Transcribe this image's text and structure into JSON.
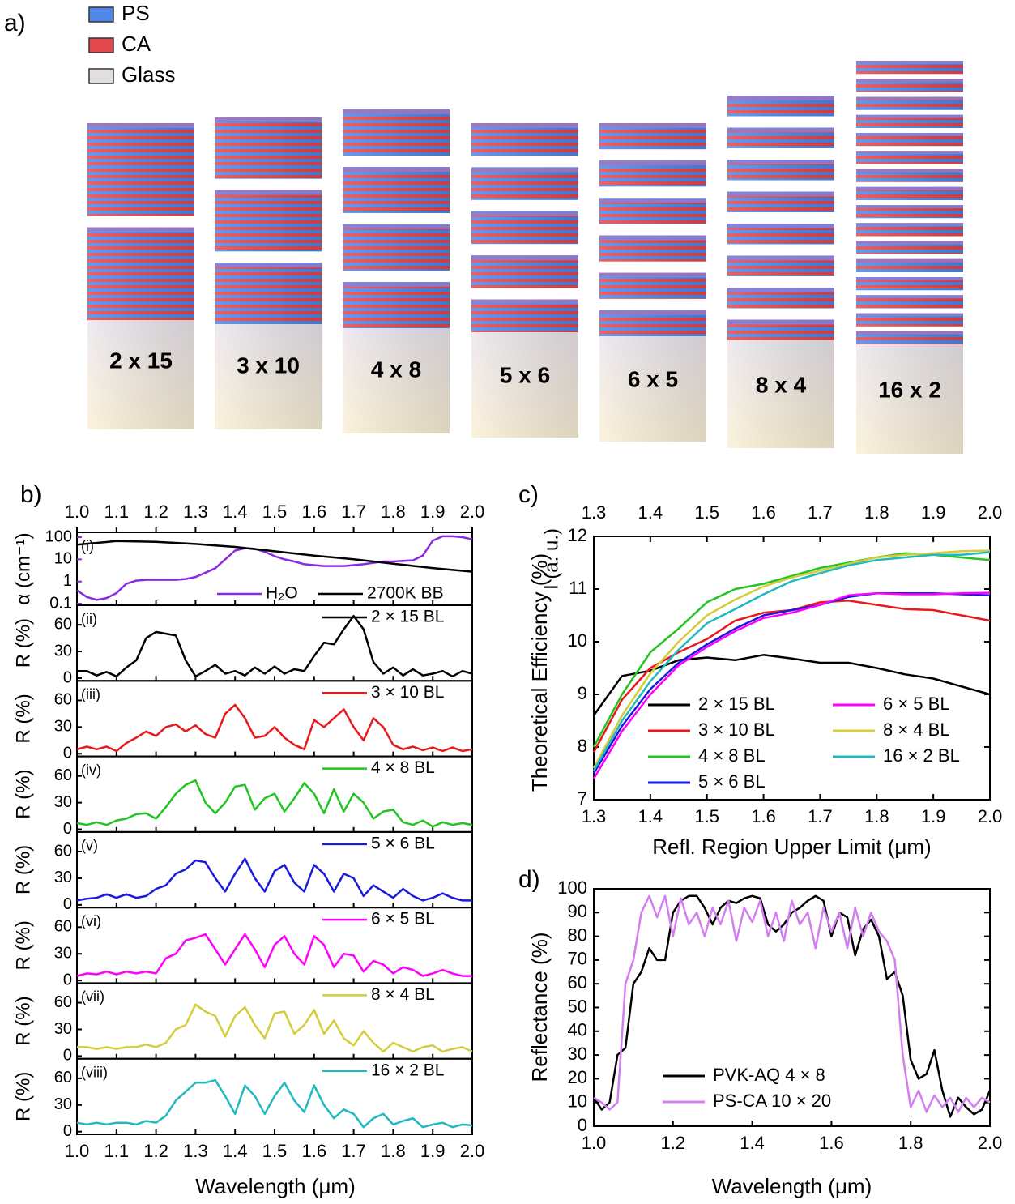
{
  "panel_a": {
    "label": "a)",
    "legend": [
      {
        "name": "PS",
        "color": "#4f86e8"
      },
      {
        "name": "CA",
        "color": "#e2474d"
      },
      {
        "name": "Glass",
        "color": "#e3dede"
      }
    ],
    "stacks": [
      "2 x 15",
      "3 x 10",
      "4 x 8",
      "5 x 6",
      "6 x 5",
      "8 x 4",
      "16 x 2"
    ]
  },
  "chart_data": [
    {
      "type": "stacked-lines",
      "panel_label": "b)",
      "xlabel": "Wavelength (μm)",
      "xlim": [
        1,
        2
      ],
      "xticks": [
        {
          "value": 1,
          "label": "1.0"
        },
        1.1,
        1.2,
        1.3,
        1.4,
        1.5,
        1.6,
        1.7,
        1.8,
        1.9,
        {
          "value": 2,
          "label": "2.0"
        }
      ],
      "x": [
        1,
        1.025,
        1.05,
        1.075,
        1.1,
        1.125,
        1.15,
        1.175,
        1.2,
        1.225,
        1.25,
        1.275,
        1.3,
        1.325,
        1.35,
        1.375,
        1.4,
        1.425,
        1.45,
        1.475,
        1.5,
        1.525,
        1.55,
        1.575,
        1.6,
        1.625,
        1.65,
        1.675,
        1.7,
        1.725,
        1.75,
        1.775,
        1.8,
        1.825,
        1.85,
        1.875,
        1.9,
        1.925,
        1.95,
        1.975,
        2
      ],
      "subplots": [
        {
          "tag": "(i)",
          "ylabel": "α (cm⁻¹)",
          "axis_color": "#8a2be2",
          "log_y": true,
          "ylim": [
            0.085,
            166
          ],
          "yticks": [
            0.1,
            1,
            10,
            100
          ],
          "y2label": "I (a. u.)",
          "y2lim": [
            0,
            1
          ],
          "series": [
            {
              "name": "H₂O",
              "color": "#8a2be2",
              "values": [
                0.4,
                0.2,
                0.15,
                0.18,
                0.3,
                0.8,
                1.1,
                1.2,
                1.2,
                1.2,
                1.2,
                1.3,
                1.6,
                2.5,
                4,
                10,
                25,
                32,
                30,
                22,
                14,
                10,
                8,
                6,
                5.5,
                5,
                5,
                5,
                5.5,
                6,
                7,
                8,
                8,
                8.5,
                9,
                15,
                70,
                110,
                110,
                100,
                80
              ]
            },
            {
              "name": "2700K BB",
              "color": "#000000",
              "axis": "y2",
              "x": [
                1,
                1.1,
                1.2,
                1.3,
                1.4,
                1.5,
                1.6,
                1.7,
                1.8,
                1.9,
                2
              ],
              "values": [
                0.83,
                0.88,
                0.87,
                0.84,
                0.8,
                0.74,
                0.68,
                0.63,
                0.57,
                0.51,
                0.46
              ]
            }
          ]
        },
        {
          "tag": "(ii)",
          "ylabel": "R (%)",
          "ylim": [
            -3,
            82
          ],
          "yticks": [
            0,
            30,
            60
          ],
          "series": [
            {
              "name": "2 × 15 BL",
              "color": "#000000",
              "values": [
                8,
                8,
                3,
                7,
                2,
                12,
                20,
                45,
                52,
                50,
                48,
                20,
                2,
                8,
                15,
                5,
                8,
                3,
                12,
                5,
                13,
                5,
                10,
                8,
                25,
                40,
                38,
                55,
                70,
                55,
                18,
                5,
                12,
                3,
                10,
                3,
                5,
                8,
                2,
                8,
                5
              ]
            }
          ]
        },
        {
          "tag": "(iii)",
          "ylabel": "R (%)",
          "ylim": [
            -3,
            82
          ],
          "yticks": [
            0,
            30,
            60
          ],
          "series": [
            {
              "name": "3 × 10 BL",
              "color": "#e8191b",
              "values": [
                5,
                8,
                5,
                8,
                3,
                12,
                18,
                25,
                20,
                30,
                33,
                25,
                32,
                22,
                18,
                45,
                55,
                40,
                18,
                20,
                30,
                18,
                10,
                5,
                38,
                30,
                40,
                50,
                30,
                15,
                40,
                30,
                10,
                5,
                8,
                4,
                7,
                3,
                7,
                3,
                5
              ]
            }
          ]
        },
        {
          "tag": "(iv)",
          "ylabel": "R (%)",
          "ylim": [
            -3,
            82
          ],
          "yticks": [
            0,
            30,
            60
          ],
          "series": [
            {
              "name": "4 × 8 BL",
              "color": "#22c422",
              "values": [
                7,
                5,
                8,
                5,
                10,
                12,
                17,
                18,
                12,
                25,
                40,
                50,
                55,
                30,
                18,
                30,
                48,
                50,
                22,
                35,
                40,
                20,
                35,
                52,
                40,
                18,
                45,
                20,
                40,
                30,
                12,
                20,
                22,
                8,
                5,
                10,
                3,
                8,
                5,
                7,
                5
              ]
            }
          ]
        },
        {
          "tag": "(v)",
          "ylabel": "R (%)",
          "ylim": [
            -3,
            82
          ],
          "yticks": [
            0,
            30,
            60
          ],
          "series": [
            {
              "name": "5 × 6 BL",
              "color": "#1a1adc",
              "values": [
                5,
                7,
                8,
                12,
                8,
                12,
                8,
                10,
                18,
                22,
                35,
                40,
                50,
                48,
                30,
                15,
                35,
                52,
                30,
                15,
                38,
                45,
                25,
                15,
                45,
                35,
                15,
                35,
                30,
                10,
                22,
                15,
                8,
                18,
                10,
                5,
                8,
                13,
                8,
                5,
                5
              ]
            }
          ]
        },
        {
          "tag": "(vi)",
          "ylabel": "R (%)",
          "ylim": [
            -3,
            82
          ],
          "yticks": [
            0,
            30,
            60
          ],
          "series": [
            {
              "name": "6 × 5 BL",
              "color": "#ff00ff",
              "values": [
                5,
                8,
                7,
                10,
                7,
                10,
                8,
                10,
                8,
                25,
                30,
                45,
                48,
                52,
                35,
                18,
                35,
                52,
                35,
                15,
                40,
                50,
                30,
                18,
                50,
                40,
                15,
                30,
                28,
                10,
                22,
                18,
                8,
                15,
                12,
                5,
                8,
                12,
                8,
                5,
                5
              ]
            }
          ]
        },
        {
          "tag": "(vii)",
          "ylabel": "R (%)",
          "ylim": [
            -3,
            82
          ],
          "yticks": [
            0,
            30,
            60
          ],
          "series": [
            {
              "name": "8 × 4 BL",
              "color": "#d4cc3a",
              "values": [
                10,
                10,
                8,
                10,
                8,
                10,
                10,
                13,
                10,
                15,
                30,
                35,
                58,
                50,
                45,
                22,
                45,
                55,
                35,
                20,
                48,
                50,
                25,
                35,
                52,
                25,
                40,
                20,
                12,
                28,
                15,
                5,
                15,
                10,
                5,
                10,
                12,
                5,
                8,
                10,
                5
              ]
            }
          ]
        },
        {
          "tag": "(viii)",
          "ylabel": "R (%)",
          "ylim": [
            -3,
            82
          ],
          "yticks": [
            0,
            30,
            60
          ],
          "series": [
            {
              "name": "16 × 2 BL",
              "color": "#22b8c0",
              "values": [
                10,
                8,
                10,
                8,
                10,
                10,
                8,
                12,
                10,
                18,
                35,
                45,
                55,
                55,
                58,
                40,
                20,
                52,
                40,
                20,
                40,
                55,
                35,
                22,
                52,
                30,
                15,
                25,
                20,
                5,
                15,
                20,
                8,
                12,
                15,
                5,
                8,
                10,
                5,
                8,
                7
              ]
            }
          ]
        }
      ]
    },
    {
      "type": "line",
      "panel_label": "c)",
      "xlabel": "Refl. Region Upper Limit (μm)",
      "ylabel": "Theoretical Efficiency (%)",
      "xlim": [
        1.3,
        2
      ],
      "xticks": [
        1.3,
        1.4,
        1.5,
        1.6,
        1.7,
        1.8,
        1.9,
        {
          "value": 2,
          "label": "2.0"
        }
      ],
      "ylim": [
        7,
        12
      ],
      "yticks": [
        7,
        8,
        9,
        10,
        11,
        12
      ],
      "x": [
        1.3,
        1.35,
        1.4,
        1.45,
        1.5,
        1.55,
        1.6,
        1.65,
        1.7,
        1.75,
        1.8,
        1.85,
        1.9,
        1.95,
        2
      ],
      "series": [
        {
          "name": "2 × 15 BL",
          "color": "#000000",
          "values": [
            8.6,
            9.35,
            9.45,
            9.65,
            9.7,
            9.65,
            9.75,
            9.68,
            9.6,
            9.6,
            9.5,
            9.38,
            9.3,
            9.15,
            9.0
          ]
        },
        {
          "name": "3 × 10 BL",
          "color": "#e8191b",
          "values": [
            7.9,
            8.9,
            9.5,
            9.8,
            10.05,
            10.4,
            10.55,
            10.6,
            10.75,
            10.78,
            10.7,
            10.62,
            10.6,
            10.5,
            10.4
          ]
        },
        {
          "name": "4 × 8 BL",
          "color": "#22c422",
          "values": [
            8.0,
            9.0,
            9.8,
            10.25,
            10.75,
            11.0,
            11.1,
            11.25,
            11.4,
            11.5,
            11.6,
            11.68,
            11.65,
            11.6,
            11.55
          ]
        },
        {
          "name": "5 × 6 BL",
          "color": "#1a1adc",
          "values": [
            7.5,
            8.4,
            9.1,
            9.6,
            9.95,
            10.25,
            10.5,
            10.6,
            10.7,
            10.85,
            10.92,
            10.92,
            10.92,
            10.9,
            10.88
          ]
        },
        {
          "name": "6 × 5 BL",
          "color": "#ff00ff",
          "values": [
            7.4,
            8.3,
            9.0,
            9.55,
            9.9,
            10.2,
            10.45,
            10.55,
            10.7,
            10.88,
            10.92,
            10.9,
            10.9,
            10.92,
            10.93
          ]
        },
        {
          "name": "8 × 4 BL",
          "color": "#d4cc3a",
          "values": [
            7.6,
            8.6,
            9.4,
            10.0,
            10.5,
            10.8,
            11.05,
            11.22,
            11.35,
            11.48,
            11.6,
            11.65,
            11.68,
            11.72,
            11.73
          ]
        },
        {
          "name": "16 × 2 BL",
          "color": "#22b8c0",
          "values": [
            7.55,
            8.5,
            9.25,
            9.85,
            10.35,
            10.62,
            10.9,
            11.15,
            11.3,
            11.45,
            11.55,
            11.6,
            11.65,
            11.65,
            11.7
          ]
        }
      ]
    },
    {
      "type": "line",
      "panel_label": "d)",
      "xlabel": "Wavelength (μm)",
      "ylabel": "Reflectance (%)",
      "xlim": [
        1,
        2
      ],
      "xticks": [
        {
          "value": 1,
          "label": "1.0"
        },
        1.2,
        1.4,
        1.6,
        1.8,
        {
          "value": 2,
          "label": "2.0"
        }
      ],
      "ylim": [
        0,
        100
      ],
      "yticks": [
        0,
        10,
        20,
        30,
        40,
        50,
        60,
        70,
        80,
        90,
        100
      ],
      "x": [
        1,
        1.02,
        1.04,
        1.06,
        1.08,
        1.1,
        1.12,
        1.14,
        1.16,
        1.18,
        1.2,
        1.22,
        1.24,
        1.26,
        1.28,
        1.3,
        1.32,
        1.34,
        1.36,
        1.38,
        1.4,
        1.42,
        1.44,
        1.46,
        1.48,
        1.5,
        1.52,
        1.54,
        1.56,
        1.58,
        1.6,
        1.62,
        1.64,
        1.66,
        1.68,
        1.7,
        1.72,
        1.74,
        1.76,
        1.78,
        1.8,
        1.82,
        1.84,
        1.86,
        1.88,
        1.9,
        1.92,
        1.94,
        1.96,
        1.98,
        2
      ],
      "series": [
        {
          "name": "PVK-AQ 4 × 8",
          "color": "#000000",
          "values": [
            12,
            7,
            10,
            30,
            33,
            60,
            65,
            75,
            70,
            70,
            90,
            95,
            97,
            97,
            92,
            85,
            92,
            95,
            94,
            96,
            97,
            96,
            85,
            82,
            85,
            90,
            92,
            95,
            97,
            95,
            80,
            90,
            88,
            72,
            83,
            87,
            80,
            62,
            65,
            55,
            28,
            20,
            22,
            32,
            15,
            4,
            12,
            8,
            5,
            7,
            15
          ]
        },
        {
          "name": "PS-CA 10 × 20",
          "color": "#d37ef0",
          "values": [
            12,
            10,
            7,
            10,
            60,
            70,
            90,
            97,
            88,
            97,
            80,
            96,
            85,
            90,
            80,
            92,
            85,
            95,
            78,
            92,
            86,
            95,
            80,
            90,
            78,
            95,
            85,
            90,
            75,
            92,
            82,
            90,
            75,
            92,
            80,
            90,
            82,
            78,
            70,
            30,
            8,
            15,
            6,
            13,
            8,
            12,
            6,
            12,
            8,
            12,
            10
          ]
        }
      ]
    }
  ]
}
